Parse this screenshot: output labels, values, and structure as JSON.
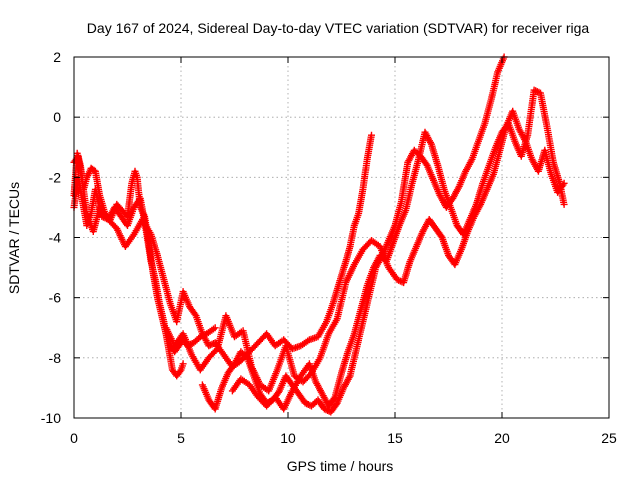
{
  "chart_data": {
    "type": "scatter",
    "title": "Day 167 of 2024, Sidereal Day-to-day VTEC variation (SDTVAR) for receiver riga",
    "xlabel": "GPS time / hours",
    "ylabel": "SDTVAR / TECUs",
    "xlim": [
      0,
      25
    ],
    "ylim": [
      -10,
      2
    ],
    "xticks": [
      0,
      5,
      10,
      15,
      20,
      25
    ],
    "yticks": [
      -10,
      -8,
      -6,
      -4,
      -2,
      0,
      2
    ],
    "xtick_labels": [
      "0",
      "5",
      "10",
      "15",
      "20",
      "25"
    ],
    "ytick_labels": [
      "-10",
      "-8",
      "-6",
      "-4",
      "-2",
      "0",
      "2"
    ],
    "grid": true,
    "marker": "+",
    "color": "#ff0000",
    "series": [
      {
        "name": "trace-1",
        "x": [
          0.0,
          0.15,
          0.3,
          0.45,
          0.6,
          0.8,
          1.0,
          1.2,
          1.45,
          1.7,
          2.0,
          2.25,
          2.5,
          2.7,
          2.85,
          2.95,
          3.1,
          3.3,
          3.5,
          3.7,
          3.9,
          4.1,
          4.3,
          4.5,
          4.7,
          4.9,
          5.1,
          5.3,
          5.6,
          5.9,
          6.2,
          6.6
        ],
        "y": [
          -2.6,
          -1.2,
          -1.6,
          -2.4,
          -2.0,
          -1.7,
          -1.8,
          -2.6,
          -3.2,
          -3.4,
          -2.9,
          -3.1,
          -3.3,
          -2.2,
          -1.8,
          -2.0,
          -3.0,
          -3.3,
          -4.2,
          -5.2,
          -6.0,
          -6.6,
          -7.2,
          -7.6,
          -7.8,
          -7.6,
          -7.4,
          -7.6,
          -7.5,
          -7.3,
          -7.2,
          -7.0
        ]
      },
      {
        "name": "trace-2",
        "x": [
          0.0,
          0.2,
          0.4,
          0.6,
          0.8,
          1.0,
          1.3,
          1.6,
          1.9,
          2.2,
          2.5,
          2.8,
          3.1,
          3.4,
          3.6,
          3.8,
          4.0,
          4.2,
          4.4,
          4.6,
          4.8,
          5.0,
          5.1
        ],
        "y": [
          -3.0,
          -2.0,
          -2.8,
          -3.6,
          -3.2,
          -2.4,
          -3.3,
          -3.4,
          -3.0,
          -3.3,
          -3.6,
          -3.0,
          -2.7,
          -3.9,
          -4.8,
          -5.4,
          -6.2,
          -6.8,
          -7.6,
          -8.4,
          -8.6,
          -8.4,
          -8.2
        ]
      },
      {
        "name": "trace-3",
        "x": [
          0.0,
          0.2,
          0.4,
          0.6,
          0.9,
          1.2,
          1.6,
          2.0,
          2.4,
          2.8,
          3.2,
          3.6,
          3.9,
          4.2,
          4.5,
          4.8,
          5.1,
          5.4,
          5.7,
          6.0,
          6.3,
          6.6,
          7.0,
          7.4,
          7.8,
          8.2,
          8.6,
          9.0,
          9.4,
          9.8,
          10.2,
          10.6,
          11.0,
          11.4,
          11.8,
          12.1,
          12.4,
          12.7,
          12.9,
          13.1,
          13.3,
          13.5,
          13.7,
          13.9
        ],
        "y": [
          -1.5,
          -1.3,
          -2.2,
          -3.2,
          -3.8,
          -3.0,
          -3.4,
          -3.7,
          -4.3,
          -3.9,
          -3.4,
          -3.9,
          -4.6,
          -5.4,
          -6.2,
          -6.8,
          -5.8,
          -6.3,
          -6.6,
          -7.2,
          -7.6,
          -7.5,
          -7.9,
          -8.3,
          -8.1,
          -7.8,
          -7.5,
          -7.2,
          -7.6,
          -7.4,
          -7.7,
          -7.6,
          -7.4,
          -7.3,
          -6.8,
          -6.2,
          -5.5,
          -4.8,
          -4.3,
          -3.6,
          -3.2,
          -2.4,
          -1.4,
          -0.6
        ]
      },
      {
        "name": "trace-4",
        "x": [
          4.3,
          4.7,
          5.1,
          5.5,
          5.9,
          6.3,
          6.7,
          7.1,
          7.5,
          7.9,
          8.3,
          8.7,
          9.1,
          9.5,
          9.9,
          10.3,
          10.7,
          11.1,
          11.5,
          11.9,
          12.3,
          12.7,
          13.1,
          13.5,
          13.9,
          14.3,
          14.7,
          15.1,
          15.4,
          15.7,
          16.0,
          16.3,
          16.6,
          16.9,
          17.2,
          17.5,
          17.8,
          18.1,
          18.4,
          18.7,
          19.0,
          19.3,
          19.6,
          19.9,
          20.2,
          20.5,
          20.8,
          21.1,
          21.4,
          21.7,
          22.0,
          22.3,
          22.6,
          22.9
        ],
        "y": [
          -7.0,
          -7.6,
          -7.2,
          -7.9,
          -8.4,
          -8.0,
          -7.7,
          -6.6,
          -7.3,
          -7.1,
          -8.3,
          -8.9,
          -9.1,
          -8.4,
          -7.6,
          -8.6,
          -8.8,
          -8.5,
          -8.0,
          -7.2,
          -6.7,
          -5.5,
          -4.9,
          -4.4,
          -4.1,
          -4.3,
          -5.0,
          -5.4,
          -5.5,
          -4.8,
          -4.3,
          -3.8,
          -3.4,
          -3.7,
          -4.0,
          -4.6,
          -4.9,
          -4.4,
          -3.8,
          -3.3,
          -2.9,
          -2.4,
          -1.9,
          -1.1,
          -0.3,
          0.2,
          -0.4,
          -0.8,
          -1.4,
          -1.8,
          -1.1,
          -1.9,
          -2.5,
          -2.2
        ]
      },
      {
        "name": "trace-5",
        "x": [
          6.0,
          6.3,
          6.6,
          6.9,
          7.2,
          7.5,
          7.8,
          8.1,
          8.4,
          8.7,
          9.0,
          9.3,
          9.6,
          9.9,
          10.2,
          10.5,
          10.8,
          11.1,
          11.4,
          11.7,
          12.0,
          12.3,
          12.6,
          12.9,
          13.2,
          13.5,
          13.8,
          14.1,
          14.4,
          14.7,
          15.0,
          15.3,
          15.6,
          15.9,
          16.2,
          16.5,
          16.8,
          17.1,
          17.4,
          17.7,
          18.0,
          18.3,
          18.6,
          18.9,
          19.2,
          19.5,
          19.8,
          20.1
        ],
        "y": [
          -8.9,
          -9.4,
          -9.7,
          -9.0,
          -8.5,
          -8.2,
          -7.8,
          -8.0,
          -8.6,
          -9.2,
          -9.5,
          -9.4,
          -9.1,
          -8.6,
          -8.9,
          -9.2,
          -9.5,
          -9.6,
          -9.4,
          -9.7,
          -9.8,
          -9.5,
          -9.0,
          -8.6,
          -7.7,
          -6.8,
          -5.9,
          -5.0,
          -4.6,
          -4.1,
          -3.6,
          -2.8,
          -1.5,
          -1.1,
          -1.3,
          -1.6,
          -2.1,
          -2.6,
          -3.0,
          -2.7,
          -2.3,
          -1.8,
          -1.4,
          -0.8,
          -0.2,
          0.6,
          1.5,
          2.0
        ]
      },
      {
        "name": "trace-6",
        "x": [
          7.4,
          7.8,
          8.2,
          8.6,
          9.0,
          9.4,
          9.8,
          10.2,
          10.6,
          11.0,
          11.3,
          11.6,
          11.9,
          12.2,
          12.5,
          12.8,
          13.1,
          13.4,
          13.7,
          14.0,
          14.3,
          14.6,
          14.9,
          15.2,
          15.5,
          15.8,
          16.1,
          16.4,
          16.7,
          17.0,
          17.3,
          17.6,
          17.9,
          18.2,
          18.5,
          18.8,
          19.1,
          19.4,
          19.7,
          20.0,
          20.3,
          20.6,
          20.9,
          21.2,
          21.5,
          21.8,
          22.1,
          22.4,
          22.7,
          22.9
        ],
        "y": [
          -9.1,
          -8.7,
          -8.9,
          -9.3,
          -9.6,
          -9.3,
          -9.7,
          -9.1,
          -8.6,
          -8.2,
          -8.8,
          -9.2,
          -9.6,
          -9.3,
          -8.5,
          -7.8,
          -7.2,
          -6.4,
          -5.6,
          -5.0,
          -4.6,
          -4.8,
          -4.2,
          -3.6,
          -3.1,
          -2.2,
          -1.4,
          -0.5,
          -0.9,
          -1.6,
          -2.4,
          -3.0,
          -3.6,
          -3.9,
          -3.4,
          -2.9,
          -2.2,
          -1.6,
          -1.0,
          -0.5,
          -0.2,
          -0.8,
          -1.3,
          -0.6,
          0.9,
          0.8,
          -0.3,
          -1.5,
          -2.2,
          -2.9
        ]
      }
    ]
  }
}
